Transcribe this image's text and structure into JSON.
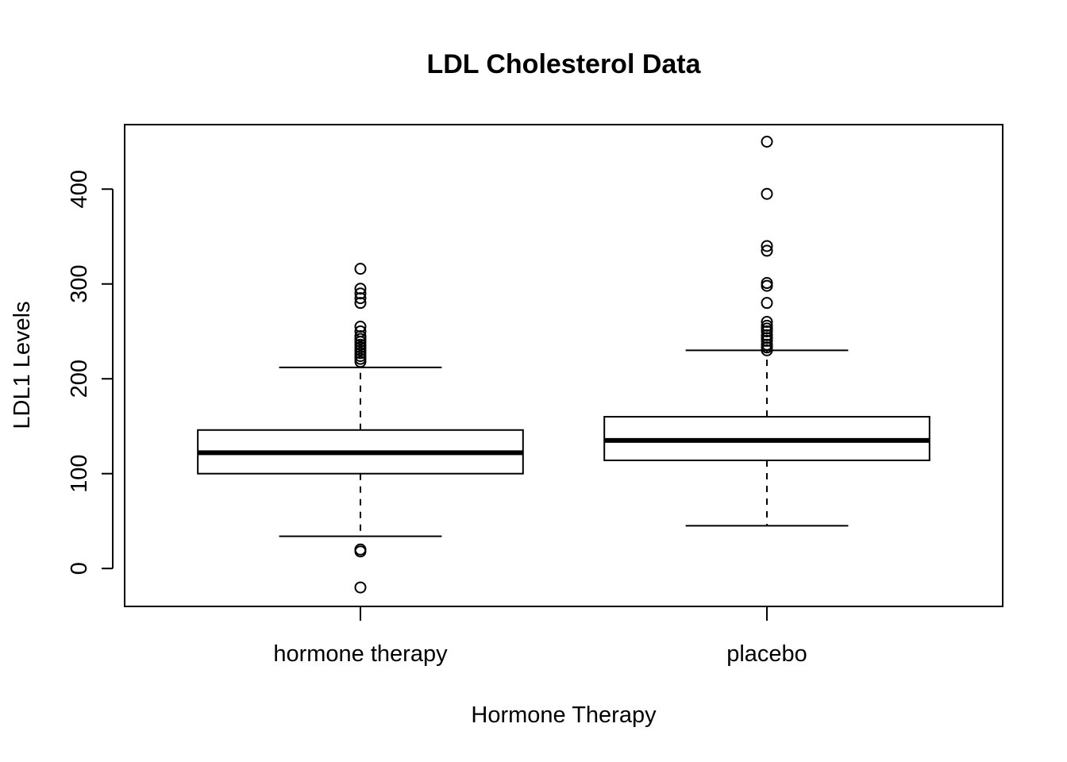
{
  "chart_data": {
    "type": "boxplot",
    "title": "LDL Cholesterol Data",
    "xlabel": "Hormone Therapy",
    "ylabel": "LDL1 Levels",
    "ylim": [
      -40,
      468
    ],
    "yticks": [
      0,
      100,
      200,
      300,
      400
    ],
    "grid": false,
    "legend": "none",
    "groups": [
      {
        "name": "hormone therapy",
        "whisker_low": 34,
        "q1": 100,
        "median": 122,
        "q3": 146,
        "whisker_high": 212,
        "outliers": [
          -20,
          18,
          20,
          218,
          221,
          224,
          227,
          230,
          233,
          236,
          239,
          242,
          245,
          250,
          255,
          280,
          285,
          290,
          295,
          316
        ]
      },
      {
        "name": "placebo",
        "whisker_low": 45,
        "q1": 114,
        "median": 135,
        "q3": 160,
        "whisker_high": 230,
        "outliers": [
          230,
          233,
          236,
          240,
          243,
          246,
          250,
          253,
          256,
          260,
          280,
          298,
          301,
          335,
          340,
          395,
          450
        ]
      }
    ]
  }
}
